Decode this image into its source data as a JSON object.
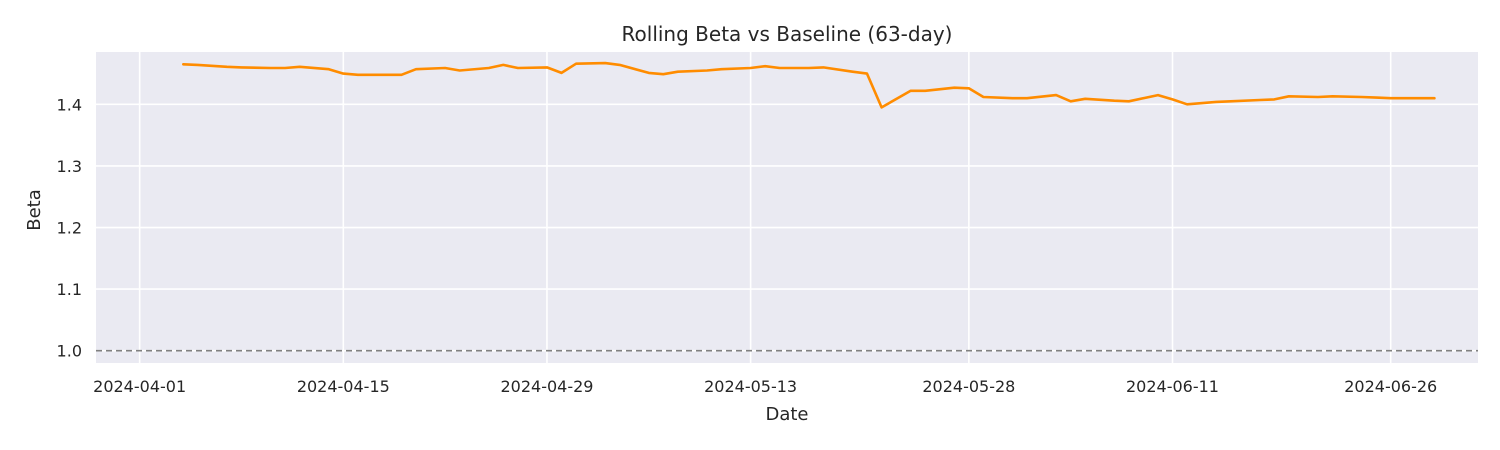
{
  "chart_data": {
    "type": "line",
    "title": "Rolling Beta vs Baseline (63-day)",
    "xlabel": "Date",
    "ylabel": "Beta",
    "xlim": [
      "2024-03-29",
      "2024-07-02"
    ],
    "ylim": [
      0.98,
      1.485
    ],
    "x_ticks": [
      "2024-04-01",
      "2024-04-15",
      "2024-04-29",
      "2024-05-13",
      "2024-05-28",
      "2024-06-11",
      "2024-06-26"
    ],
    "y_ticks": [
      1.0,
      1.1,
      1.2,
      1.3,
      1.4
    ],
    "y_tick_labels": [
      "1.0",
      "1.1",
      "1.2",
      "1.3",
      "1.4"
    ],
    "grid": true,
    "baseline": {
      "y": 1.0,
      "style": "dashed",
      "color": "#808080"
    },
    "colors": {
      "background": "#eaeaf2",
      "line": "#ff8c00",
      "grid": "#ffffff"
    },
    "series": [
      {
        "x": [
          "2024-04-04",
          "2024-04-05",
          "2024-04-07",
          "2024-04-08",
          "2024-04-10",
          "2024-04-11",
          "2024-04-12",
          "2024-04-14",
          "2024-04-15",
          "2024-04-16",
          "2024-04-18",
          "2024-04-19",
          "2024-04-20",
          "2024-04-22",
          "2024-04-23",
          "2024-04-25",
          "2024-04-26",
          "2024-04-27",
          "2024-04-29",
          "2024-04-30",
          "2024-05-01",
          "2024-05-03",
          "2024-05-04",
          "2024-05-06",
          "2024-05-07",
          "2024-05-08",
          "2024-05-10",
          "2024-05-11",
          "2024-05-13",
          "2024-05-14",
          "2024-05-15",
          "2024-05-17",
          "2024-05-18",
          "2024-05-20",
          "2024-05-21",
          "2024-05-22",
          "2024-05-24",
          "2024-05-25",
          "2024-05-27",
          "2024-05-28",
          "2024-05-29",
          "2024-05-31",
          "2024-06-01",
          "2024-06-03",
          "2024-06-04",
          "2024-06-05",
          "2024-06-07",
          "2024-06-08",
          "2024-06-10",
          "2024-06-11",
          "2024-06-12",
          "2024-06-14",
          "2024-06-15",
          "2024-06-17",
          "2024-06-18",
          "2024-06-19",
          "2024-06-21",
          "2024-06-22",
          "2024-06-24",
          "2024-06-25",
          "2024-06-26",
          "2024-06-28",
          "2024-06-29"
        ],
        "values": [
          1.465,
          1.464,
          1.461,
          1.46,
          1.459,
          1.459,
          1.461,
          1.457,
          1.45,
          1.448,
          1.448,
          1.448,
          1.457,
          1.459,
          1.455,
          1.459,
          1.464,
          1.459,
          1.46,
          1.451,
          1.466,
          1.467,
          1.464,
          1.451,
          1.449,
          1.453,
          1.455,
          1.457,
          1.459,
          1.462,
          1.459,
          1.459,
          1.46,
          1.453,
          1.45,
          1.395,
          1.422,
          1.422,
          1.427,
          1.426,
          1.412,
          1.41,
          1.41,
          1.415,
          1.405,
          1.409,
          1.406,
          1.405,
          1.415,
          1.408,
          1.4,
          1.404,
          1.405,
          1.407,
          1.408,
          1.413,
          1.412,
          1.413,
          1.412,
          1.411,
          1.41,
          1.41,
          1.41
        ]
      }
    ]
  }
}
